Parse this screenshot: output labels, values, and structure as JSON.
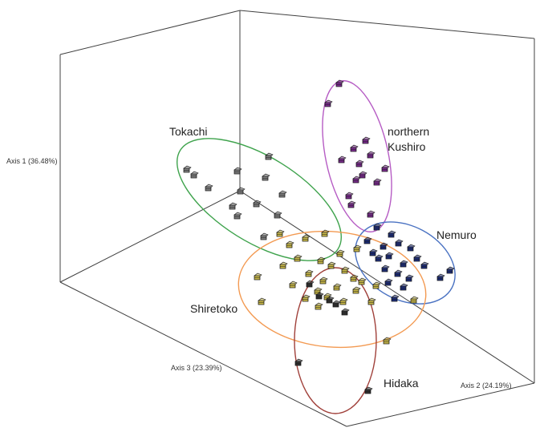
{
  "chart_data": {
    "type": "scatter",
    "projection": "3d",
    "title": "",
    "axes": {
      "axis1": "Axis 1 (36.48%)",
      "axis2": "Axis 2 (24.19%)",
      "axis3": "Axis 3 (23.39%)"
    },
    "grid": false,
    "legend": "none",
    "groups": [
      {
        "name": "Tokachi",
        "ellipse_color": "#3fa34d",
        "point_color": "#7f7f7f"
      },
      {
        "name": "northern Kushiro",
        "label_lines": [
          "northern",
          "Kushiro"
        ],
        "ellipse_color": "#b65cc4",
        "point_color": "#7b2d8e"
      },
      {
        "name": "Nemuro",
        "ellipse_color": "#4a72c2",
        "point_color": "#1f2f7a"
      },
      {
        "name": "Shiretoko",
        "ellipse_color": "#f39a52",
        "point_color": "#c9b94a"
      },
      {
        "name": "Hidaka",
        "ellipse_color": "#a0403a",
        "point_color": "#333333"
      }
    ]
  }
}
